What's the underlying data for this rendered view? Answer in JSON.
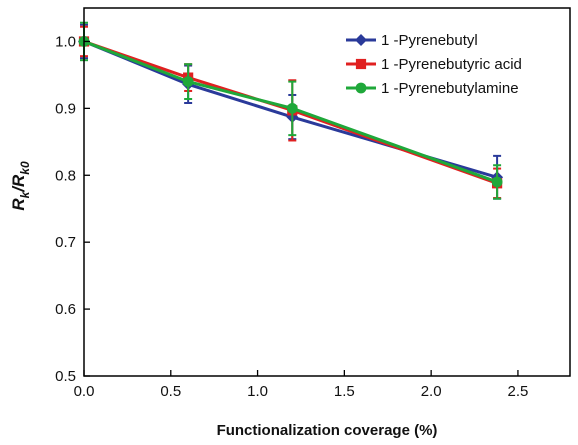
{
  "chart_data": {
    "type": "line",
    "xlabel": "Functionalization coverage (%)",
    "ylabel_parts": [
      "R",
      "k",
      "/R",
      "k0"
    ],
    "xlim": [
      0,
      2.8
    ],
    "ylim": [
      0.5,
      1.05
    ],
    "xticks": [
      0.0,
      0.5,
      1.0,
      1.5,
      2.0,
      2.5
    ],
    "xtick_labels": [
      "0.0",
      "0.5",
      "1.0",
      "1.5",
      "2.0",
      "2.5"
    ],
    "yticks": [
      0.5,
      0.6,
      0.7,
      0.8,
      0.9,
      1.0
    ],
    "ytick_labels": [
      "0.5",
      "0.6",
      "0.7",
      "0.8",
      "0.9",
      "1.0"
    ],
    "grid": false,
    "legend_position": "top-right",
    "series": [
      {
        "name": "1 -Pyrenebutyl",
        "color": "#2a3a9a",
        "marker": "diamond",
        "x": [
          0.0,
          0.6,
          1.2,
          2.38
        ],
        "y": [
          1.0,
          0.936,
          0.887,
          0.797
        ],
        "err": [
          0.025,
          0.028,
          0.033,
          0.032
        ]
      },
      {
        "name": "1 -Pyrenebutyric acid",
        "color": "#e02020",
        "marker": "square",
        "x": [
          0.0,
          0.6,
          1.2,
          2.38
        ],
        "y": [
          1.0,
          0.946,
          0.897,
          0.788
        ],
        "err": [
          0.022,
          0.02,
          0.045,
          0.022
        ]
      },
      {
        "name": "1 -Pyrenebutylamine",
        "color": "#1fa83a",
        "marker": "circle",
        "x": [
          0.0,
          0.6,
          1.2,
          2.38
        ],
        "y": [
          1.0,
          0.94,
          0.9,
          0.79
        ],
        "err": [
          0.028,
          0.026,
          0.04,
          0.025
        ]
      }
    ]
  }
}
